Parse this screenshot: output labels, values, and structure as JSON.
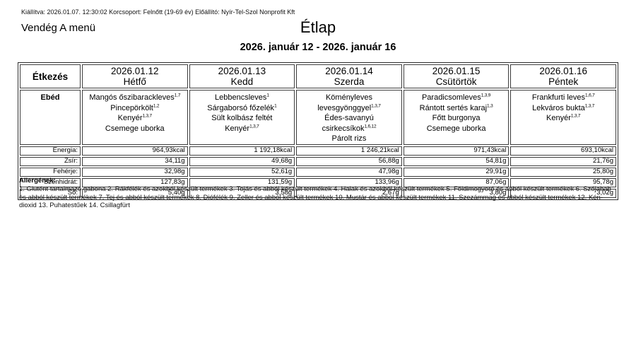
{
  "page": {
    "meta_line": "Kiállítva: 2026.01.07. 12:30:02 Korcsoport: Felnőtt (19-69 év) Előállító: Nyír-Tel-Szol Nonprofit Kft",
    "menu_name": "Vendég A menü",
    "title": "Étlap",
    "date_range": "2026. január 12 - 2026. január 16"
  },
  "table": {
    "meal_header": "Étkezés",
    "meal_label": "Ebéd",
    "days": [
      {
        "date": "2026.01.12",
        "day": "Hétfő",
        "items": [
          {
            "name": "Mangós őszibarackleves",
            "sup": "1,7"
          },
          {
            "name": "Pincepörkölt",
            "sup": "1,2"
          },
          {
            "name": "Kenyér",
            "sup": "1,3,7"
          },
          {
            "name": "Csemege uborka",
            "sup": ""
          }
        ]
      },
      {
        "date": "2026.01.13",
        "day": "Kedd",
        "items": [
          {
            "name": "Lebbencsleves",
            "sup": "1"
          },
          {
            "name": "Sárgaborsó főzelék",
            "sup": "1"
          },
          {
            "name": "Sült kolbász feltét",
            "sup": ""
          },
          {
            "name": "Kenyér",
            "sup": "1,3,7"
          }
        ]
      },
      {
        "date": "2026.01.14",
        "day": "Szerda",
        "items": [
          {
            "name": "Köményleves levesgyönggyel",
            "sup": "1,3,7"
          },
          {
            "name": "Édes-savanyú csirkecsíkok",
            "sup": "1,6,12"
          },
          {
            "name": "Párolt rizs",
            "sup": ""
          }
        ]
      },
      {
        "date": "2026.01.15",
        "day": "Csütörtök",
        "items": [
          {
            "name": "Paradicsomleves",
            "sup": "1,3,9"
          },
          {
            "name": "Rántott sertés karaj",
            "sup": "1,3"
          },
          {
            "name": "Főtt burgonya",
            "sup": ""
          },
          {
            "name": "Csemege uborka",
            "sup": ""
          }
        ]
      },
      {
        "date": "2026.01.16",
        "day": "Péntek",
        "items": [
          {
            "name": "Frankfurti leves",
            "sup": "1,6,7"
          },
          {
            "name": "Lekváros bukta",
            "sup": "1,3,7"
          },
          {
            "name": "Kenyér",
            "sup": "1,3,7"
          }
        ]
      }
    ],
    "nutrition": [
      {
        "label": "Energia:",
        "values": [
          "964,93kcal",
          "1 192,18kcal",
          "1 246,21kcal",
          "971,43kcal",
          "693,10kcal"
        ]
      },
      {
        "label": "Zsír:",
        "values": [
          "34,11g",
          "49,68g",
          "56,88g",
          "54,81g",
          "21,76g"
        ]
      },
      {
        "label": "Fehérje:",
        "values": [
          "32,98g",
          "52,61g",
          "47,98g",
          "29,91g",
          "25,80g"
        ]
      },
      {
        "label": "Szénhidrát:",
        "values": [
          "127,83g",
          "131,59g",
          "133,96g",
          "87,06g",
          "95,78g"
        ]
      },
      {
        "label": "Só:",
        "values": [
          "5,40g",
          "3,58g",
          "2,67g",
          "3,80g",
          "3,02g"
        ]
      }
    ]
  },
  "allergens": {
    "heading": "Allergének:",
    "text": "1. Glutént tartalmazó gabona 2. Rákfélék és azokból készült termékek 3. Tojás és abból készült termékek 4. Halak és azokból készült termékek 5. Földimogyoró és abból készült termékek 6. Szójabab és abból készült termékek 7. Tej és abból készült termékek 8. Diófélék 9. Zeller és abból készült termékek 10. Mustár és abból készült termékek 11. Szezámmag és abból készült termékek 12. Kén-dioxid 13. Puhatestűek 14. Csillagfürt"
  }
}
